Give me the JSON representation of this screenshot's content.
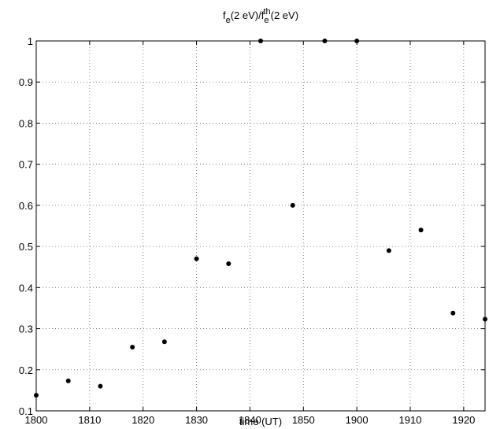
{
  "chart_data": {
    "type": "scatter",
    "title": [
      {
        "text": "f"
      },
      {
        "text": "e",
        "shift": "sub"
      },
      {
        "text": "(2 eV)/f"
      },
      {
        "text": "e",
        "shift": "sub"
      },
      {
        "text": "th",
        "shift": "super"
      },
      {
        "text": "(2 eV)"
      }
    ],
    "xlabel": "time (UT)",
    "xscale": "hhmm",
    "x": [
      1800,
      1806,
      1812,
      1818,
      1824,
      1830,
      1836,
      1842,
      1848,
      1854,
      1900,
      1906,
      1912,
      1918,
      1924
    ],
    "values": [
      0.138,
      0.173,
      0.16,
      0.255,
      0.268,
      0.47,
      0.458,
      1,
      0.6,
      1,
      1,
      0.49,
      0.54,
      0.338,
      0.323
    ],
    "color": "#000000",
    "xlim": [
      1800,
      1924
    ],
    "xticks": [
      1800,
      1810,
      1820,
      1830,
      1840,
      1850,
      1900,
      1910,
      1920
    ],
    "ylim": [
      0.1,
      1
    ],
    "yticks": [
      0.1,
      0.2,
      0.3,
      0.4,
      0.5,
      0.6,
      0.7,
      0.8,
      0.9,
      1
    ],
    "grid": true
  }
}
